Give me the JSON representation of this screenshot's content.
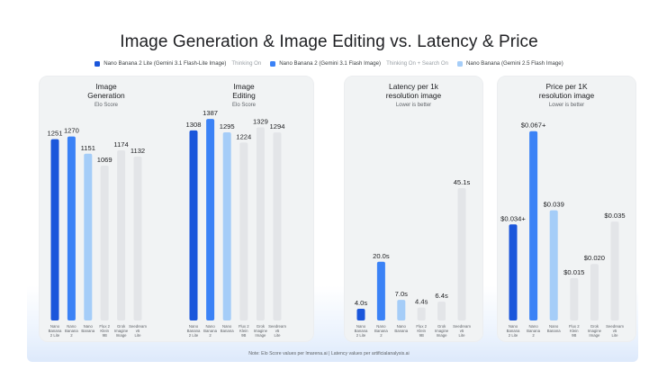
{
  "title": "Image Generation & Image Editing vs. Latency & Price",
  "legend": [
    {
      "name": "Nano Banana 2 Lite (Gemini 3.1 Flash-Lite Image)",
      "note": "Thinking On",
      "color": "#1a56db"
    },
    {
      "name": "Nano Banana 2 (Gemini 3.1 Flash Image)",
      "note": "Thinking On + Search On",
      "color": "#3b82f6"
    },
    {
      "name": "Nano Banana (Gemini 2.5 Flash Image)",
      "note": "",
      "color": "#a5cdf8"
    }
  ],
  "colors": {
    "nb2lite": "#1a56db",
    "nb2": "#3b82f6",
    "nb": "#a5cdf8",
    "other": "#e3e5e8",
    "label": "#5f6368",
    "value": "#202124"
  },
  "footnote": "Note: Elo Score values per lmarena.ai  |  Latency values per artificialanalysis.ai",
  "chart_data": [
    {
      "type": "bar",
      "title": "Image\nGeneration",
      "subtitle": "Elo Score",
      "categories": [
        "Nano\nBanana\n2 Lite",
        "Nano\nBanana\n2",
        "Nano\nBanana",
        "Flux 2\nKlein\n9B",
        "Grok\nImagine\nImage",
        "Seedream\nv5\nLite"
      ],
      "values": [
        1251,
        1270,
        1151,
        1069,
        1174,
        1132
      ],
      "value_labels": [
        "1251",
        "1270",
        "1151",
        "1069",
        "1174",
        "1132"
      ],
      "ylim": [
        0,
        1280
      ],
      "grid": false
    },
    {
      "type": "bar",
      "title": "Image\nEditing",
      "subtitle": "Elo Score",
      "categories": [
        "Nano\nBanana\n2 Lite",
        "Nano\nBanana\n2",
        "Nano\nBanana",
        "Flux 2\nKlein\n9B",
        "Grok\nImagine\nImage",
        "Seedream\nv5\nLite"
      ],
      "values": [
        1308,
        1387,
        1295,
        1224,
        1329,
        1294
      ],
      "value_labels": [
        "1308",
        "1387",
        "1295",
        "1224",
        "1329",
        "1294"
      ],
      "ylim": [
        0,
        1400
      ],
      "grid": false
    },
    {
      "type": "bar",
      "title": "Latency per 1k\nresolution image",
      "subtitle": "Lower is better",
      "categories": [
        "Nano\nBanana\n2 Lite",
        "Nano\nBanana\n2",
        "Nano\nBanana",
        "Flux 2\nKlein\n9B",
        "Grok\nImagine\nImage",
        "Seedream\nv5\nLite"
      ],
      "values": [
        4.0,
        20.0,
        7.0,
        4.4,
        6.4,
        45.1
      ],
      "value_labels": [
        "4.0s",
        "20.0s",
        "7.0s",
        "4.4s",
        "6.4s",
        "45.1s"
      ],
      "ylim": [
        0,
        50
      ],
      "grid": false
    },
    {
      "type": "bar",
      "title": "Price per 1K\nresolution image",
      "subtitle": "Lower is better",
      "categories": [
        "Nano\nBanana\n2 Lite",
        "Nano\nBanana\n2",
        "Nano\nBanana",
        "Flux 2\nKlein\n9B",
        "Grok\nImagine\nImage",
        "Seedream\nv5\nLite"
      ],
      "values": [
        0.034,
        0.067,
        0.039,
        0.015,
        0.02,
        0.035
      ],
      "value_labels": [
        "$0.034+",
        "$0.067+",
        "$0.039",
        "$0.015",
        "$0.020",
        "$0.035"
      ],
      "ylim": [
        0,
        0.072
      ],
      "grid": false
    }
  ]
}
